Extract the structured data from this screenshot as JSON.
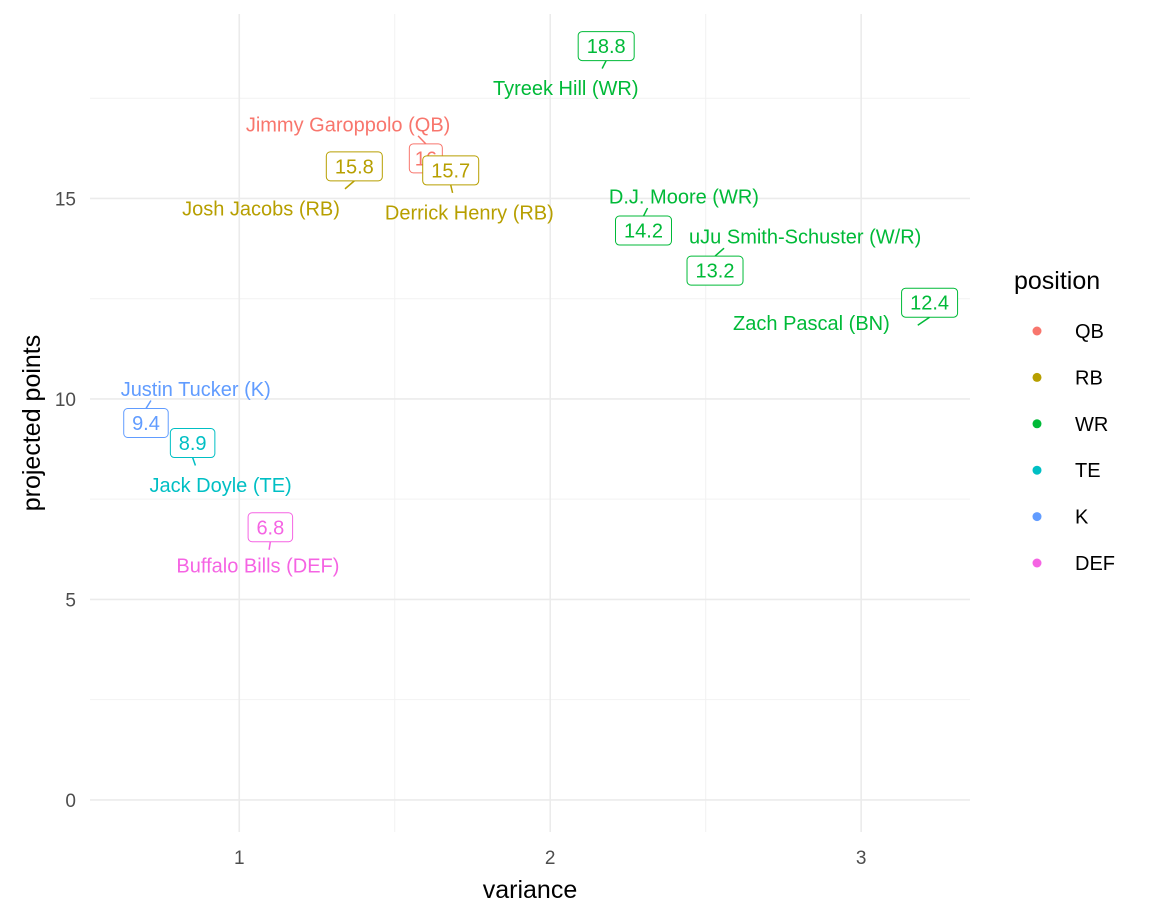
{
  "chart_data": {
    "type": "scatter",
    "xlabel": "variance",
    "ylabel": "projected points",
    "xlim": [
      0.52,
      3.35
    ],
    "ylim": [
      -0.8,
      19.6
    ],
    "x_ticks": [
      1,
      2,
      3
    ],
    "x_tick_labels": [
      "1",
      "2",
      "3"
    ],
    "x_minor_ticks": [
      1.5,
      2.5
    ],
    "y_ticks": [
      0,
      5,
      10,
      15
    ],
    "y_tick_labels": [
      "0",
      "5",
      "10",
      "15"
    ],
    "y_minor_ticks": [
      2.5,
      7.5,
      12.5,
      17.5
    ],
    "grid": true,
    "legend": {
      "title": "position",
      "placement": "right",
      "entries": [
        {
          "label": "QB",
          "color": "#F8766D"
        },
        {
          "label": "RB",
          "color": "#B79F00"
        },
        {
          "label": "WR",
          "color": "#00BA38"
        },
        {
          "label": "TE",
          "color": "#00BFC4"
        },
        {
          "label": "K",
          "color": "#619CFF"
        },
        {
          "label": "DEF",
          "color": "#F564E3"
        }
      ]
    },
    "points": [
      {
        "name": "Tyreek Hill (WR)",
        "position": "WR",
        "x": 2.12,
        "y": 18.8,
        "value_label": "18.8",
        "box_at": [
          2.18,
          18.8
        ],
        "name_at": [
          2.05,
          17.75
        ]
      },
      {
        "name": "Jimmy Garoppolo (QB)",
        "position": "QB",
        "x": 1.6,
        "y": 16,
        "value_label": "16",
        "box_at": [
          1.6,
          16
        ],
        "name_at": [
          1.35,
          16.85
        ]
      },
      {
        "name": "Josh Jacobs (RB)",
        "position": "RB",
        "x": 1.3,
        "y": 15.8,
        "value_label": "15.8",
        "box_at": [
          1.37,
          15.8
        ],
        "name_at": [
          1.07,
          14.75
        ]
      },
      {
        "name": "Derrick Henry (RB)",
        "position": "RB",
        "x": 1.68,
        "y": 15.7,
        "value_label": "15.7",
        "box_at": [
          1.68,
          15.7
        ],
        "name_at": [
          1.74,
          14.65
        ]
      },
      {
        "name": "D.J. Moore (WR)",
        "position": "WR",
        "x": 2.38,
        "y": 14.2,
        "value_label": "14.2",
        "box_at": [
          2.3,
          14.2
        ],
        "name_at": [
          2.43,
          15.05
        ]
      },
      {
        "name": "uJu Smith-Schuster (W/R)",
        "position": "WR",
        "x": 2.64,
        "y": 13.2,
        "value_label": "13.2",
        "box_at": [
          2.53,
          13.2
        ],
        "name_at": [
          2.82,
          14.05
        ]
      },
      {
        "name": "Zach Pascal (BN)",
        "position": "WR",
        "x": 3.1,
        "y": 12.4,
        "value_label": "12.4",
        "box_at": [
          3.22,
          12.4
        ],
        "name_at": [
          2.84,
          11.9
        ]
      },
      {
        "name": "Justin Tucker (K)",
        "position": "K",
        "x": 0.7,
        "y": 9.4,
        "value_label": "9.4",
        "box_at": [
          0.7,
          9.4
        ],
        "name_at": [
          0.86,
          10.25
        ]
      },
      {
        "name": "Jack Doyle (TE)",
        "position": "TE",
        "x": 0.82,
        "y": 8.9,
        "value_label": "8.9",
        "box_at": [
          0.85,
          8.9
        ],
        "name_at": [
          0.94,
          7.85
        ]
      },
      {
        "name": "Buffalo Bills (DEF)",
        "position": "DEF",
        "x": 1.08,
        "y": 6.8,
        "value_label": "6.8",
        "box_at": [
          1.1,
          6.8
        ],
        "name_at": [
          1.06,
          5.85
        ]
      }
    ]
  }
}
